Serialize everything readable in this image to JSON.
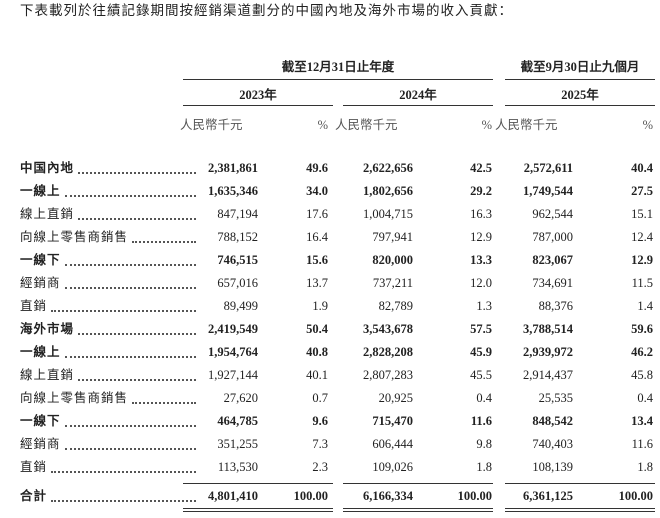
{
  "intro": "下表載列於往績記錄期間按經銷渠道劃分的中國內地及海外市場的收入貢獻：",
  "table": {
    "period_headers": [
      "截至12月31日止年度",
      "截至9月30日止九個月"
    ],
    "years": [
      "2023年",
      "2024年",
      "2025年"
    ],
    "units": [
      "人民幣千元",
      "%"
    ],
    "rows": [
      {
        "label": "中国內地",
        "bold": true,
        "values": [
          "2,381,861",
          "49.6",
          "2,622,656",
          "42.5",
          "2,572,611",
          "40.4"
        ]
      },
      {
        "label": "一線上",
        "bold": true,
        "values": [
          "1,635,346",
          "34.0",
          "1,802,656",
          "29.2",
          "1,749,544",
          "27.5"
        ]
      },
      {
        "label": "線上直銷",
        "bold": false,
        "values": [
          "847,194",
          "17.6",
          "1,004,715",
          "16.3",
          "962,544",
          "15.1"
        ]
      },
      {
        "label": "向線上零售商銷售",
        "bold": false,
        "values": [
          "788,152",
          "16.4",
          "797,941",
          "12.9",
          "787,000",
          "12.4"
        ]
      },
      {
        "label": "一線下",
        "bold": true,
        "values": [
          "746,515",
          "15.6",
          "820,000",
          "13.3",
          "823,067",
          "12.9"
        ]
      },
      {
        "label": "經銷商",
        "bold": false,
        "values": [
          "657,016",
          "13.7",
          "737,211",
          "12.0",
          "734,691",
          "11.5"
        ]
      },
      {
        "label": "直銷",
        "bold": false,
        "values": [
          "89,499",
          "1.9",
          "82,789",
          "1.3",
          "88,376",
          "1.4"
        ]
      },
      {
        "label": "海外市場",
        "bold": true,
        "values": [
          "2,419,549",
          "50.4",
          "3,543,678",
          "57.5",
          "3,788,514",
          "59.6"
        ]
      },
      {
        "label": "一線上",
        "bold": true,
        "values": [
          "1,954,764",
          "40.8",
          "2,828,208",
          "45.9",
          "2,939,972",
          "46.2"
        ]
      },
      {
        "label": "線上直銷",
        "bold": false,
        "values": [
          "1,927,144",
          "40.1",
          "2,807,283",
          "45.5",
          "2,914,437",
          "45.8"
        ]
      },
      {
        "label": "向線上零售商銷售",
        "bold": false,
        "values": [
          "27,620",
          "0.7",
          "20,925",
          "0.4",
          "25,535",
          "0.4"
        ]
      },
      {
        "label": "一線下",
        "bold": true,
        "values": [
          "464,785",
          "9.6",
          "715,470",
          "11.6",
          "848,542",
          "13.4"
        ]
      },
      {
        "label": "經銷商",
        "bold": false,
        "values": [
          "351,255",
          "7.3",
          "606,444",
          "9.8",
          "740,403",
          "11.6"
        ]
      },
      {
        "label": "直銷",
        "bold": false,
        "values": [
          "113,530",
          "2.3",
          "109,026",
          "1.8",
          "108,139",
          "1.8"
        ]
      },
      {
        "label": "合計",
        "bold": true,
        "values": [
          "4,801,410",
          "100.00",
          "6,166,334",
          "100.00",
          "6,361,125",
          "100.00"
        ]
      }
    ]
  }
}
